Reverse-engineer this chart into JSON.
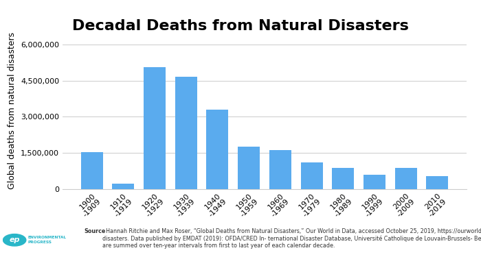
{
  "title": "Decadal Deaths from Natural Disasters",
  "ylabel": "Global deaths from natural disasters",
  "categories": [
    "1900\n-1909",
    "1910\n-1919",
    "1920\n-1929",
    "1930\n-1939",
    "1940\n-1949",
    "1950\n-1959",
    "1960\n-1969",
    "1970\n-1979",
    "1980\n-1989",
    "1990\n-1999",
    "2000\n-2009",
    "2010\n-2019"
  ],
  "values": [
    1520000,
    210000,
    5050000,
    4650000,
    3300000,
    1750000,
    1620000,
    1100000,
    870000,
    590000,
    870000,
    530000
  ],
  "bar_color": "#5aabee",
  "ylim": [
    0,
    6500000
  ],
  "yticks": [
    0,
    1500000,
    3000000,
    4500000,
    6000000
  ],
  "ytick_labels": [
    "0",
    "1,500,000",
    "3,000,000",
    "4,500,000",
    "6,000,000"
  ],
  "source_bold": "Source",
  "source_rest": ": Hannah Ritchie and Max Roser, “Global Deaths from Natural Disasters,” Our World in Data, accessed October 25, 2019, https://ourworldindata.org /natural-\ndisasters. Data published by EMDAT (2019): OFDA/CRED In- ternational Disaster Database, Université Catholique de Louvain-Brussels- Belgium. Data for individual years\nare summed over ten-year intervals from first to last year of each calendar decade.",
  "background_color": "#ffffff",
  "grid_color": "#cccccc",
  "title_fontsize": 16,
  "axis_label_fontsize": 9,
  "tick_fontsize": 8,
  "source_fontsize": 5.8,
  "logo_text1": "ENVIRONMENTAL",
  "logo_text2": "PROGRESS",
  "logo_color": "#29b6c8"
}
